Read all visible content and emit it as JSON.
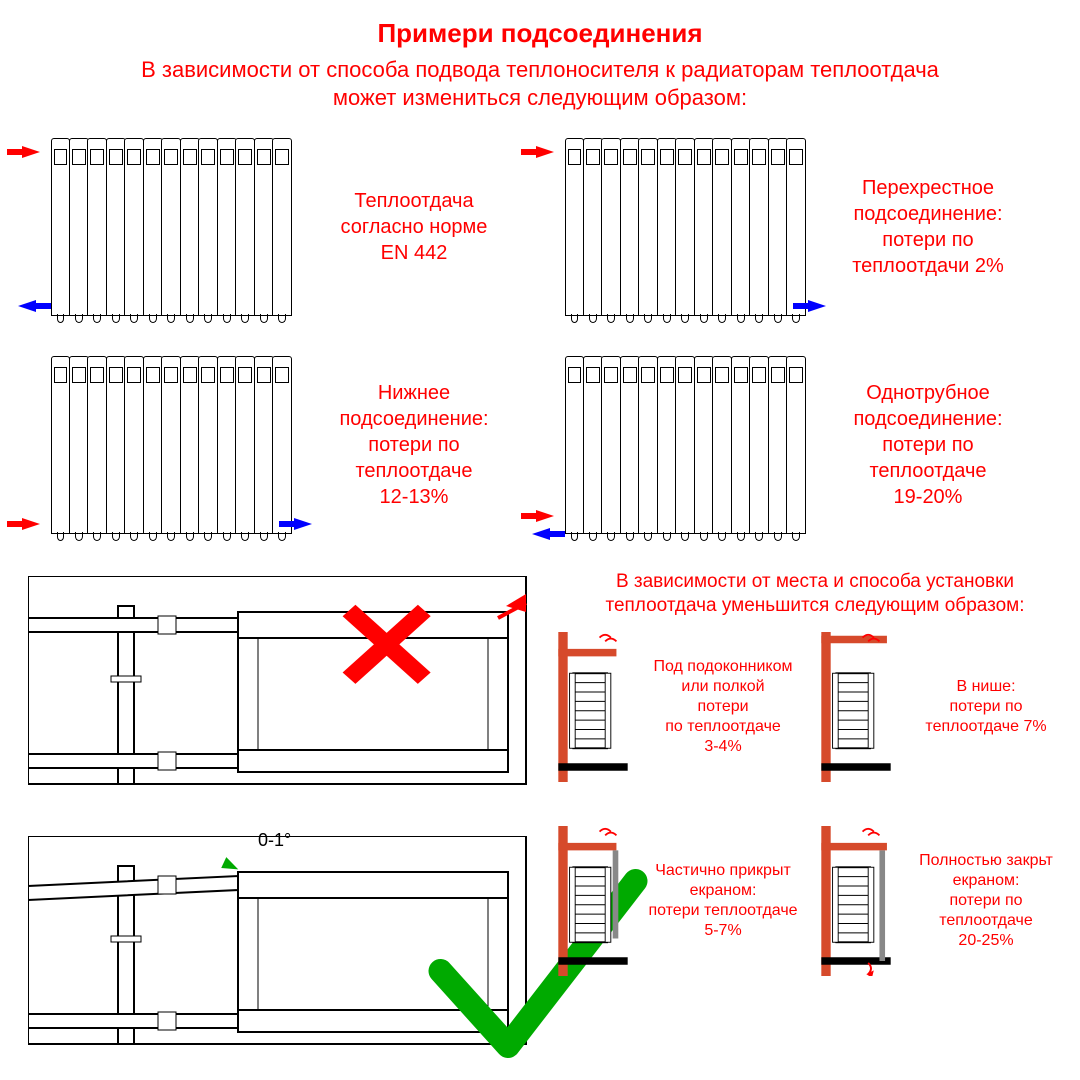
{
  "colors": {
    "text_red": "#ff0000",
    "hot": "#ff0000",
    "cold": "#0000ff",
    "ok": "#00aa00",
    "wall": "#d64a2b",
    "black": "#000000",
    "grey": "#888888"
  },
  "title": "Примери подсоединения",
  "subtitle": "В зависимости от способа подвода теплоносителя к радиаторам теплоотдача\nможет измениться следующим образом:",
  "connections": [
    {
      "label": "Теплоотдача\nсогласно норме\nEN 442",
      "in": {
        "side": "left",
        "v": "top",
        "color": "hot",
        "dir": "right"
      },
      "out": {
        "side": "left",
        "v": "bottom",
        "color": "cold",
        "dir": "left"
      }
    },
    {
      "label": "Перехрестное\nподсоединение:\nпотери по\nтеплоотдачи 2%",
      "in": {
        "side": "left",
        "v": "top",
        "color": "hot",
        "dir": "right"
      },
      "out": {
        "side": "right",
        "v": "bottom",
        "color": "cold",
        "dir": "right"
      }
    },
    {
      "label": "Нижнее\nподсоединение:\nпотери по\nтеплоотдаче\n12-13%",
      "in": {
        "side": "left",
        "v": "bottom",
        "color": "hot",
        "dir": "right"
      },
      "out": {
        "side": "right",
        "v": "bottom",
        "color": "cold",
        "dir": "right"
      }
    },
    {
      "label": "Однотрубное\nподсоединение:\nпотери по\nтеплоотдаче\n19-20%",
      "in": {
        "side": "left",
        "v": "bottom-upper",
        "color": "hot",
        "dir": "right"
      },
      "out": {
        "side": "left",
        "v": "bottom-lower",
        "color": "cold",
        "dir": "left"
      }
    }
  ],
  "install_subtitle": "В зависимости от места и способа установки\nтеплоотдача уменьшится следующим образом:",
  "install_angle": "0-1°",
  "placements": [
    {
      "label": "Под подоконником\nили полкой\nпотери\nпо теплоотдаче\n3-4%",
      "variant": "sill"
    },
    {
      "label": "В нише:\nпотери по\nтеплоотдаче 7%",
      "variant": "niche"
    },
    {
      "label": "Частично прикрыт\nекраном:\nпотери теплоотдаче\n5-7%",
      "variant": "partial_screen"
    },
    {
      "label": "Полностью закрьт\nекраном:\nпотери по теплоотдаче\n20-25%",
      "variant": "full_screen"
    }
  ],
  "radiator_sections": 13
}
